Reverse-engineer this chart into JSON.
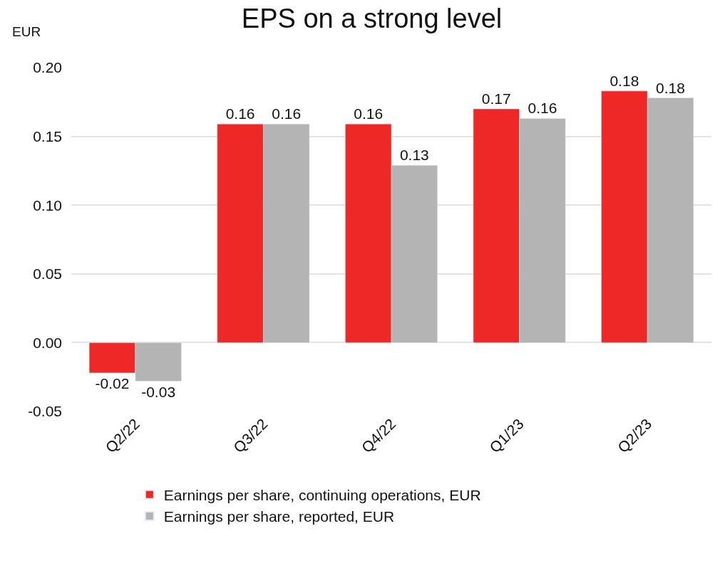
{
  "chart_data": {
    "type": "bar",
    "title": "EPS on a strong level",
    "ylabel": "EUR",
    "categories": [
      "Q2/22",
      "Q3/22",
      "Q4/22",
      "Q1/23",
      "Q2/23"
    ],
    "series": [
      {
        "name": "Earnings per share, continuing operations, EUR",
        "color": "#ee2727",
        "values": [
          -0.022,
          0.159,
          0.159,
          0.17,
          0.183
        ],
        "value_labels": [
          "-0.02",
          "0.16",
          "0.16",
          "0.17",
          "0.18"
        ]
      },
      {
        "name": "Earnings per share, reported, EUR",
        "color": "#b4b4b4",
        "values": [
          -0.028,
          0.159,
          0.129,
          0.163,
          0.178
        ],
        "value_labels": [
          "-0.03",
          "0.16",
          "0.13",
          "0.16",
          "0.18"
        ]
      }
    ],
    "ylim": [
      -0.05,
      0.2
    ],
    "yticks": [
      {
        "value": -0.05,
        "label": "-0.05"
      },
      {
        "value": 0,
        "label": "0.00"
      },
      {
        "value": 0.05,
        "label": "0.05"
      },
      {
        "value": 0.1,
        "label": "0.10"
      },
      {
        "value": 0.15,
        "label": "0.15"
      },
      {
        "value": 0.2,
        "label": "0.20"
      }
    ],
    "grid": "y",
    "legend": "bottom"
  }
}
